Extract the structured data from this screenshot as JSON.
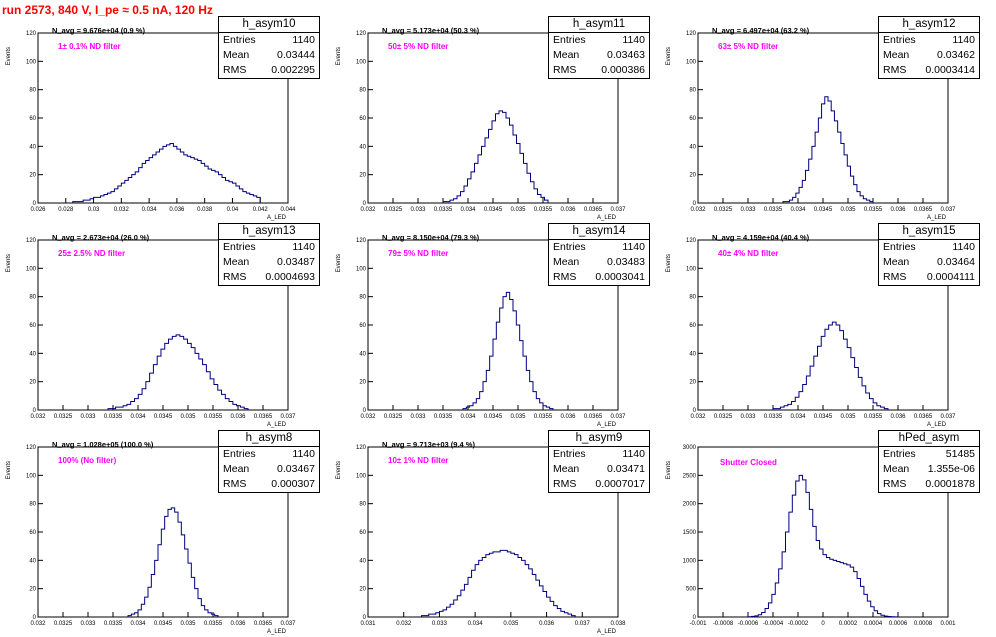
{
  "run_title": "run 2573,   840 V, I_pe ≈ 0.5 nA, 120 Hz",
  "colors": {
    "title": "#ff0000",
    "histogram": "#000080",
    "filter_label": "#ff00ff"
  },
  "chart_data": [
    {
      "type": "histogram",
      "name": "h_asym10",
      "navg_label": "N_avg = 9.676e+04 (0.9 %)",
      "filter_label": "1± 0.1% ND filter",
      "stats": {
        "entries_label": "Entries",
        "entries": "1140",
        "mean_label": "Mean",
        "mean": "0.03444",
        "rms_label": "RMS",
        "rms": "0.002295"
      },
      "xlabel": "A_LED",
      "ylabel": "Events",
      "xlim": [
        0.026,
        0.044
      ],
      "ylim": [
        0,
        120
      ],
      "xticks": [
        "0.026",
        "0.028",
        "0.03",
        "0.032",
        "0.034",
        "0.036",
        "0.038",
        "0.04",
        "0.042",
        "0.044"
      ],
      "yticks": [
        "0",
        "20",
        "40",
        "60",
        "80",
        "100",
        "120"
      ],
      "bin_range": [
        0.0285,
        0.042
      ],
      "values": [
        1,
        1,
        1,
        2,
        2,
        3,
        4,
        4,
        5,
        6,
        7,
        8,
        10,
        12,
        14,
        16,
        18,
        20,
        22,
        25,
        28,
        30,
        32,
        34,
        36,
        38,
        40,
        41,
        42,
        40,
        38,
        36,
        34,
        33,
        32,
        31,
        30,
        28,
        26,
        24,
        23,
        22,
        20,
        18,
        16,
        15,
        14,
        12,
        10,
        8,
        7,
        6,
        5,
        4
      ]
    },
    {
      "type": "histogram",
      "name": "h_asym11",
      "navg_label": "N_avg = 5.173e+04 (50.3 %)",
      "filter_label": "50± 5% ND filter",
      "stats": {
        "entries_label": "Entries",
        "entries": "1140",
        "mean_label": "Mean",
        "mean": "0.03463",
        "rms_label": "RMS",
        "rms": "0.000386"
      },
      "xlabel": "A_LED",
      "ylabel": "Events",
      "xlim": [
        0.032,
        0.037
      ],
      "ylim": [
        0,
        120
      ],
      "xticks": [
        "0.032",
        "0.0325",
        "0.033",
        "0.0335",
        "0.034",
        "0.0345",
        "0.035",
        "0.0355",
        "0.036",
        "0.0365",
        "0.037"
      ],
      "yticks": [
        "0",
        "20",
        "40",
        "60",
        "80",
        "100",
        "120"
      ],
      "bin_range": [
        0.0335,
        0.0356
      ],
      "values": [
        1,
        1,
        2,
        3,
        5,
        8,
        12,
        17,
        22,
        28,
        34,
        40,
        46,
        52,
        58,
        63,
        65,
        64,
        60,
        55,
        48,
        42,
        35,
        28,
        21,
        15,
        10,
        6,
        4,
        2
      ]
    },
    {
      "type": "histogram",
      "name": "h_asym12",
      "navg_label": "N_avg = 6.497e+04 (63.2 %)",
      "filter_label": "63± 5% ND filter",
      "stats": {
        "entries_label": "Entries",
        "entries": "1140",
        "mean_label": "Mean",
        "mean": "0.03462",
        "rms_label": "RMS",
        "rms": "0.0003414"
      },
      "xlabel": "A_LED",
      "ylabel": "Events",
      "xlim": [
        0.032,
        0.037
      ],
      "ylim": [
        0,
        120
      ],
      "xticks": [
        "0.032",
        "0.0325",
        "0.033",
        "0.0335",
        "0.034",
        "0.0345",
        "0.035",
        "0.0355",
        "0.036",
        "0.0365",
        "0.037"
      ],
      "yticks": [
        "0",
        "20",
        "40",
        "60",
        "80",
        "100",
        "120"
      ],
      "bin_range": [
        0.0337,
        0.0355
      ],
      "values": [
        1,
        1,
        2,
        4,
        7,
        11,
        16,
        23,
        31,
        40,
        50,
        60,
        70,
        75,
        72,
        65,
        58,
        50,
        42,
        34,
        26,
        19,
        13,
        8,
        5,
        3,
        2,
        1
      ]
    },
    {
      "type": "histogram",
      "name": "h_asym13",
      "navg_label": "N_avg = 2.673e+04 (26.0 %)",
      "filter_label": "25± 2.5% ND filter",
      "stats": {
        "entries_label": "Entries",
        "entries": "1140",
        "mean_label": "Mean",
        "mean": "0.03487",
        "rms_label": "RMS",
        "rms": "0.0004693"
      },
      "xlabel": "A_LED",
      "ylabel": "Events",
      "xlim": [
        0.032,
        0.037
      ],
      "ylim": [
        0,
        120
      ],
      "xticks": [
        "0.032",
        "0.0325",
        "0.033",
        "0.0335",
        "0.034",
        "0.0345",
        "0.035",
        "0.0355",
        "0.036",
        "0.0365",
        "0.037"
      ],
      "yticks": [
        "0",
        "20",
        "40",
        "60",
        "80",
        "100",
        "120"
      ],
      "bin_range": [
        0.0334,
        0.0362
      ],
      "values": [
        1,
        1,
        2,
        2,
        3,
        4,
        6,
        8,
        11,
        15,
        20,
        26,
        32,
        38,
        43,
        47,
        50,
        52,
        53,
        52,
        50,
        47,
        44,
        40,
        36,
        32,
        27,
        22,
        18,
        14,
        11,
        8,
        6,
        4,
        3,
        2,
        1
      ]
    },
    {
      "type": "histogram",
      "name": "h_asym14",
      "navg_label": "N_avg = 8.150e+04 (79.3 %)",
      "filter_label": "79± 5% ND filter",
      "stats": {
        "entries_label": "Entries",
        "entries": "1140",
        "mean_label": "Mean",
        "mean": "0.03483",
        "rms_label": "RMS",
        "rms": "0.0003041"
      },
      "xlabel": "A_LED",
      "ylabel": "Events",
      "xlim": [
        0.032,
        0.037
      ],
      "ylim": [
        0,
        120
      ],
      "xticks": [
        "0.032",
        "0.0325",
        "0.033",
        "0.0335",
        "0.034",
        "0.0345",
        "0.035",
        "0.0355",
        "0.036",
        "0.0365",
        "0.037"
      ],
      "yticks": [
        "0",
        "20",
        "40",
        "60",
        "80",
        "100",
        "120"
      ],
      "bin_range": [
        0.0339,
        0.0357
      ],
      "values": [
        1,
        2,
        3,
        5,
        8,
        13,
        20,
        28,
        38,
        50,
        62,
        72,
        80,
        83,
        78,
        70,
        60,
        49,
        38,
        28,
        20,
        13,
        8,
        5,
        3,
        2,
        1
      ]
    },
    {
      "type": "histogram",
      "name": "h_asym15",
      "navg_label": "N_avg = 4.159e+04 (40.4 %)",
      "filter_label": "40± 4% ND filter",
      "stats": {
        "entries_label": "Entries",
        "entries": "1140",
        "mean_label": "Mean",
        "mean": "0.03464",
        "rms_label": "RMS",
        "rms": "0.0004111"
      },
      "xlabel": "A_LED",
      "ylabel": "Events",
      "xlim": [
        0.032,
        0.037
      ],
      "ylim": [
        0,
        120
      ],
      "xticks": [
        "0.032",
        "0.0325",
        "0.033",
        "0.0335",
        "0.034",
        "0.0345",
        "0.035",
        "0.0355",
        "0.036",
        "0.0365",
        "0.037"
      ],
      "yticks": [
        "0",
        "20",
        "40",
        "60",
        "80",
        "100",
        "120"
      ],
      "bin_range": [
        0.0335,
        0.0358
      ],
      "values": [
        1,
        1,
        2,
        3,
        4,
        6,
        9,
        13,
        18,
        24,
        31,
        38,
        45,
        52,
        57,
        60,
        62,
        60,
        56,
        50,
        44,
        37,
        30,
        23,
        17,
        12,
        8,
        5,
        3,
        2,
        1
      ]
    },
    {
      "type": "histogram",
      "name": "h_asym8",
      "navg_label": "N_avg = 1.028e+05 (100.0 %)",
      "filter_label": "100% (No filter)",
      "stats": {
        "entries_label": "Entries",
        "entries": "1140",
        "mean_label": "Mean",
        "mean": "0.03467",
        "rms_label": "RMS",
        "rms": "0.000307"
      },
      "xlabel": "A_LED",
      "ylabel": "Events",
      "xlim": [
        0.032,
        0.037
      ],
      "ylim": [
        0,
        120
      ],
      "xticks": [
        "0.032",
        "0.0325",
        "0.033",
        "0.0335",
        "0.034",
        "0.0345",
        "0.035",
        "0.0355",
        "0.036",
        "0.0365",
        "0.037"
      ],
      "yticks": [
        "0",
        "20",
        "40",
        "60",
        "80",
        "100",
        "120"
      ],
      "bin_range": [
        0.0338,
        0.0356
      ],
      "values": [
        1,
        2,
        3,
        5,
        9,
        14,
        21,
        30,
        40,
        51,
        62,
        71,
        76,
        77,
        74,
        67,
        58,
        48,
        38,
        28,
        20,
        13,
        8,
        5,
        3,
        2,
        1
      ]
    },
    {
      "type": "histogram",
      "name": "h_asym9",
      "navg_label": "N_avg = 9.713e+03 (9.4 %)",
      "filter_label": "10± 1% ND filter",
      "stats": {
        "entries_label": "Entries",
        "entries": "1140",
        "mean_label": "Mean",
        "mean": "0.03471",
        "rms_label": "RMS",
        "rms": "0.0007017"
      },
      "xlabel": "A_LED",
      "ylabel": "Events",
      "xlim": [
        0.031,
        0.038
      ],
      "ylim": [
        0,
        120
      ],
      "xticks": [
        "0.031",
        "0.032",
        "0.033",
        "0.034",
        "0.035",
        "0.036",
        "0.037",
        "0.038"
      ],
      "yticks": [
        "0",
        "20",
        "40",
        "60",
        "80",
        "100",
        "120"
      ],
      "bin_range": [
        0.0325,
        0.0368
      ],
      "values": [
        1,
        1,
        2,
        2,
        3,
        4,
        5,
        7,
        9,
        12,
        15,
        19,
        23,
        28,
        33,
        37,
        40,
        42,
        44,
        45,
        46,
        46,
        47,
        47,
        46,
        45,
        44,
        42,
        40,
        37,
        34,
        30,
        26,
        22,
        18,
        14,
        11,
        8,
        6,
        4,
        3,
        2,
        1
      ]
    },
    {
      "type": "histogram",
      "name": "hPed_asym",
      "navg_label": "",
      "filter_label": "Shutter Closed",
      "stats": {
        "entries_label": "Entries",
        "entries": "51485",
        "mean_label": "Mean",
        "mean": "1.355e-06",
        "rms_label": "RMS",
        "rms": "0.0001878"
      },
      "xlabel": "",
      "ylabel": "Events",
      "xlim": [
        -0.001,
        0.001
      ],
      "ylim": [
        0,
        3000
      ],
      "xticks": [
        "-0.001",
        "-0.0008",
        "-0.0006",
        "-0.0004",
        "-0.0002",
        "0",
        "0.0002",
        "0.0004",
        "0.0006",
        "0.0008",
        "0.001"
      ],
      "yticks": [
        "0",
        "500",
        "1000",
        "1500",
        "2000",
        "2500",
        "3000"
      ],
      "bin_range": [
        -0.0006,
        0.0006
      ],
      "values": [
        5,
        10,
        20,
        40,
        80,
        150,
        250,
        400,
        600,
        850,
        1150,
        1500,
        1850,
        2150,
        2400,
        2500,
        2420,
        2200,
        1900,
        1600,
        1350,
        1200,
        1100,
        1050,
        1020,
        1000,
        980,
        960,
        940,
        920,
        880,
        800,
        680,
        540,
        400,
        280,
        180,
        110,
        60,
        30,
        15,
        8,
        4,
        2
      ]
    }
  ]
}
